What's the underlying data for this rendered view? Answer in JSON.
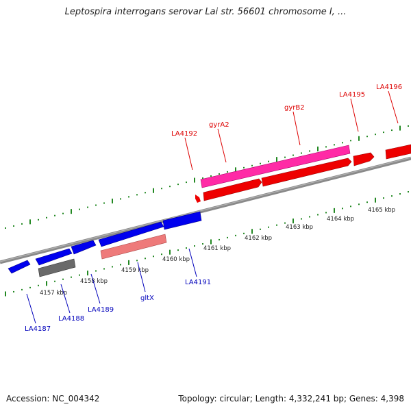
{
  "title": "Leptospira interrogans serovar Lai str. 56601 chromosome I, ...",
  "footer": {
    "accession": "Accession: NC_004342",
    "summary": "Topology: circular; Length: 4,332,241 bp; Genes: 4,398"
  },
  "scale": {
    "ticks": [
      "4157 kbp",
      "4158 kbp",
      "4159 kbp",
      "4160 kbp",
      "4161 kbp",
      "4162 kbp",
      "4163 kbp",
      "4164 kbp",
      "4165 kbp"
    ]
  },
  "genes_top": [
    "LA4192",
    "gyrA2",
    "gyrB2",
    "LA4195",
    "LA4196"
  ],
  "genes_bottom": [
    "LA4187",
    "LA4188",
    "LA4189",
    "gltX",
    "LA4191"
  ],
  "colors": {
    "forward_gene": "#ff0000",
    "reverse_gene": "#0000ff",
    "forward_cds": "#ff33aa",
    "reverse_cds": "#ee7777",
    "pseudo": "#666666",
    "backbone": "#888888",
    "tick": "#228822"
  }
}
